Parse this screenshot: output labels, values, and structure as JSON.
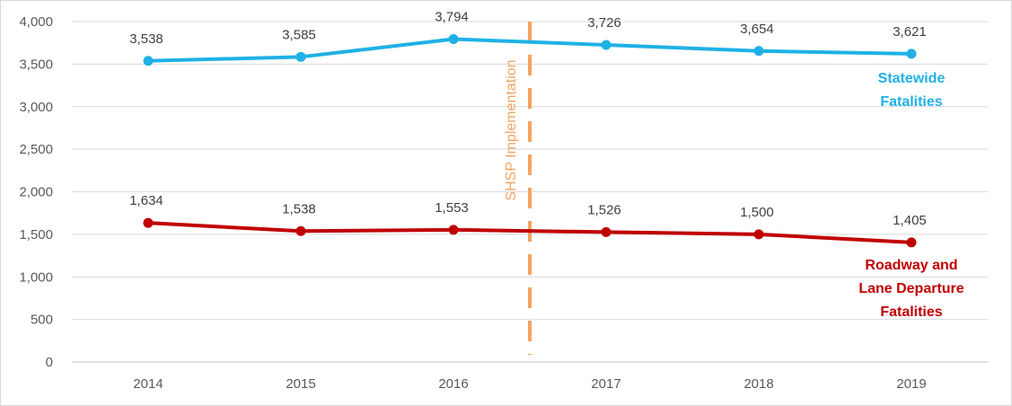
{
  "chart_data": {
    "type": "line",
    "categories": [
      "2014",
      "2015",
      "2016",
      "2017",
      "2018",
      "2019"
    ],
    "ylim": [
      0,
      4000
    ],
    "yticks": [
      0,
      500,
      1000,
      1500,
      2000,
      2500,
      3000,
      3500,
      4000
    ],
    "ytick_labels": [
      "0",
      "500",
      "1,000",
      "1,500",
      "2,000",
      "2,500",
      "3,000",
      "3,500",
      "4,000"
    ],
    "grid": true,
    "series": [
      {
        "name": "Statewide Fatalities",
        "label_lines": [
          "Statewide",
          "Fatalities"
        ],
        "color": "#1fb1e6",
        "values": [
          3538,
          3585,
          3794,
          3726,
          3654,
          3621
        ],
        "data_labels": [
          "3,538",
          "3,585",
          "3,794",
          "3,726",
          "3,654",
          "3,621"
        ]
      },
      {
        "name": "Roadway and Lane Departure Fatalities",
        "label_lines": [
          "Roadway and",
          "Lane Departure",
          "Fatalities"
        ],
        "color": "#c00000",
        "values": [
          1634,
          1538,
          1553,
          1526,
          1500,
          1405
        ],
        "data_labels": [
          "1,634",
          "1,538",
          "1,553",
          "1,526",
          "1,500",
          "1,405"
        ]
      }
    ],
    "annotations": [
      {
        "text": "SHSP Implementation",
        "between": [
          "2016",
          "2017"
        ],
        "color": "#f4a460",
        "style": "dashed vertical line"
      }
    ]
  }
}
